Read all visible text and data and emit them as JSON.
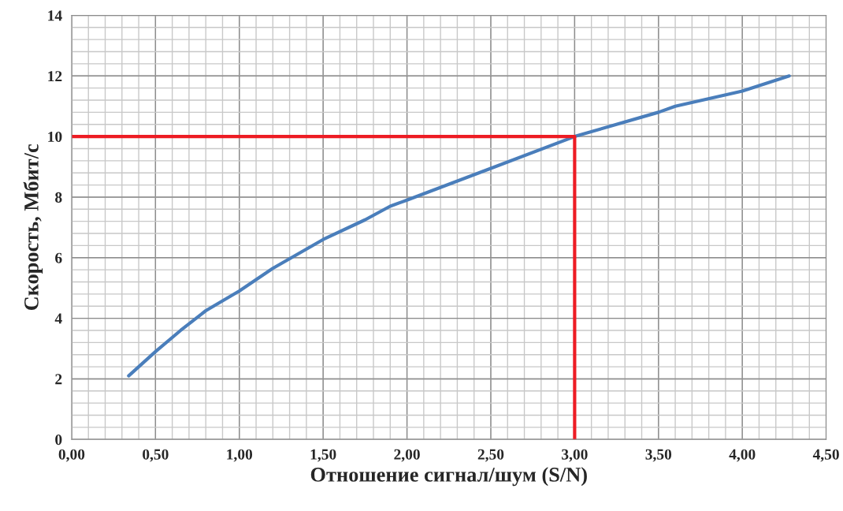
{
  "chart_data": {
    "type": "line",
    "xlabel": "Отношение сигнал/шум (S/N)",
    "ylabel": "Скорость, Мбит/с",
    "series": [
      {
        "color": "#4a7ebb",
        "x": [
          0.34,
          0.5,
          0.65,
          0.8,
          1.0,
          1.2,
          1.5,
          1.75,
          1.9,
          2.0,
          2.5,
          3.0,
          3.5,
          3.6,
          4.0,
          4.28
        ],
        "values": [
          2.1,
          2.9,
          3.6,
          4.25,
          4.9,
          5.65,
          6.6,
          7.25,
          7.7,
          7.9,
          8.95,
          10.0,
          10.8,
          11.0,
          11.5,
          12.0
        ]
      },
      {
        "color": "#ed1c24",
        "x": [
          0,
          3.0,
          3.0
        ],
        "values": [
          10.0,
          10.0,
          0
        ]
      }
    ],
    "xlim": [
      0,
      4.5
    ],
    "ylim": [
      0,
      14
    ],
    "xticks": [
      {
        "value": 0,
        "label": "0,00"
      },
      {
        "value": 0.5,
        "label": "0,50"
      },
      {
        "value": 1.0,
        "label": "1,00"
      },
      {
        "value": 1.5,
        "label": "1,50"
      },
      {
        "value": 2.0,
        "label": "2,00"
      },
      {
        "value": 2.5,
        "label": "2,50"
      },
      {
        "value": 3.0,
        "label": "3,00"
      },
      {
        "value": 3.5,
        "label": "3,50"
      },
      {
        "value": 4.0,
        "label": "4,00"
      },
      {
        "value": 4.5,
        "label": "4,50"
      }
    ],
    "yticks": [
      0,
      2,
      4,
      6,
      8,
      10,
      12,
      14
    ],
    "grid": true,
    "marker": "none",
    "line_style": "solid"
  }
}
